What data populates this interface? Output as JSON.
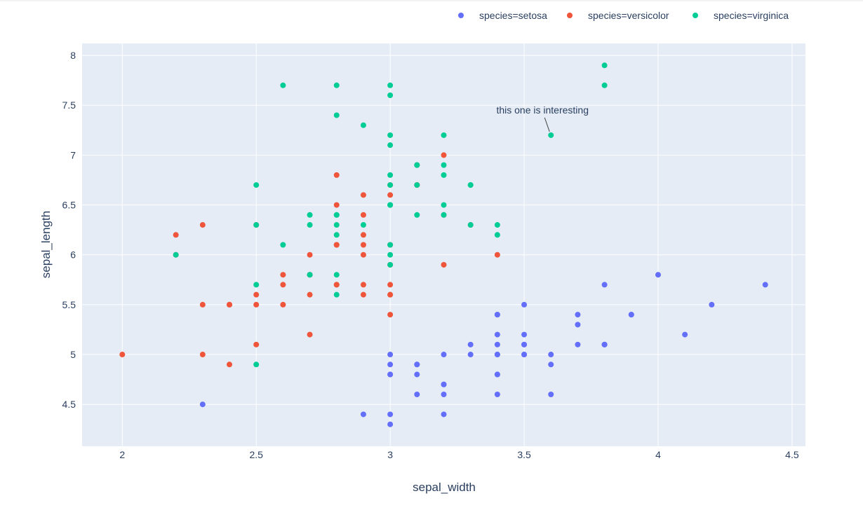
{
  "chart_data": {
    "type": "scatter",
    "xlabel": "sepal_width",
    "ylabel": "sepal_length",
    "xlim": [
      1.85,
      4.55
    ],
    "ylim": [
      4.08,
      8.12
    ],
    "xticks": [
      "2",
      "2.5",
      "3",
      "3.5",
      "4",
      "4.5"
    ],
    "yticks": [
      "4.5",
      "5",
      "5.5",
      "6",
      "6.5",
      "7",
      "7.5",
      "8"
    ],
    "grid": true,
    "legend_position": "top-right",
    "series": [
      {
        "name": "species=setosa",
        "color": "#636efa",
        "points": [
          [
            3.5,
            5.1
          ],
          [
            3.0,
            4.9
          ],
          [
            3.2,
            4.7
          ],
          [
            3.1,
            4.6
          ],
          [
            3.6,
            5.0
          ],
          [
            3.9,
            5.4
          ],
          [
            3.4,
            4.6
          ],
          [
            3.4,
            5.0
          ],
          [
            2.9,
            4.4
          ],
          [
            3.1,
            4.9
          ],
          [
            3.7,
            5.4
          ],
          [
            3.4,
            4.8
          ],
          [
            3.0,
            4.8
          ],
          [
            3.0,
            4.3
          ],
          [
            4.0,
            5.8
          ],
          [
            4.4,
            5.7
          ],
          [
            3.9,
            5.4
          ],
          [
            3.5,
            5.1
          ],
          [
            3.8,
            5.7
          ],
          [
            3.8,
            5.1
          ],
          [
            3.4,
            5.4
          ],
          [
            3.7,
            5.1
          ],
          [
            3.6,
            4.6
          ],
          [
            3.3,
            5.1
          ],
          [
            3.4,
            4.8
          ],
          [
            3.0,
            5.0
          ],
          [
            3.4,
            5.0
          ],
          [
            3.5,
            5.2
          ],
          [
            3.4,
            5.2
          ],
          [
            3.2,
            4.7
          ],
          [
            3.1,
            4.8
          ],
          [
            3.4,
            5.4
          ],
          [
            4.1,
            5.2
          ],
          [
            4.2,
            5.5
          ],
          [
            3.1,
            4.9
          ],
          [
            3.2,
            5.0
          ],
          [
            3.5,
            5.5
          ],
          [
            3.6,
            4.9
          ],
          [
            3.0,
            4.4
          ],
          [
            3.4,
            5.1
          ],
          [
            3.5,
            5.0
          ],
          [
            2.3,
            4.5
          ],
          [
            3.2,
            4.4
          ],
          [
            3.5,
            5.0
          ],
          [
            3.8,
            5.1
          ],
          [
            3.0,
            4.8
          ],
          [
            3.8,
            5.1
          ],
          [
            3.2,
            4.6
          ],
          [
            3.7,
            5.3
          ],
          [
            3.3,
            5.0
          ]
        ]
      },
      {
        "name": "species=versicolor",
        "color": "#EF553B",
        "points": [
          [
            3.2,
            7.0
          ],
          [
            3.2,
            6.4
          ],
          [
            3.1,
            6.9
          ],
          [
            2.3,
            5.5
          ],
          [
            2.8,
            6.5
          ],
          [
            2.8,
            5.7
          ],
          [
            3.3,
            6.3
          ],
          [
            2.4,
            4.9
          ],
          [
            2.9,
            6.6
          ],
          [
            2.7,
            5.2
          ],
          [
            2.0,
            5.0
          ],
          [
            3.0,
            5.9
          ],
          [
            2.2,
            6.0
          ],
          [
            2.9,
            6.1
          ],
          [
            2.9,
            5.6
          ],
          [
            3.1,
            6.7
          ],
          [
            3.0,
            5.6
          ],
          [
            2.7,
            5.8
          ],
          [
            2.2,
            6.2
          ],
          [
            2.5,
            5.6
          ],
          [
            3.2,
            5.9
          ],
          [
            2.8,
            6.1
          ],
          [
            2.5,
            6.3
          ],
          [
            2.8,
            6.1
          ],
          [
            2.9,
            6.4
          ],
          [
            3.0,
            6.6
          ],
          [
            2.8,
            6.8
          ],
          [
            3.0,
            6.7
          ],
          [
            2.9,
            6.0
          ],
          [
            2.6,
            5.7
          ],
          [
            2.4,
            5.5
          ],
          [
            2.4,
            5.5
          ],
          [
            2.7,
            5.8
          ],
          [
            2.7,
            6.0
          ],
          [
            3.0,
            5.4
          ],
          [
            3.4,
            6.0
          ],
          [
            3.1,
            6.7
          ],
          [
            2.3,
            6.3
          ],
          [
            3.0,
            5.6
          ],
          [
            2.5,
            5.5
          ],
          [
            2.6,
            5.5
          ],
          [
            3.0,
            6.1
          ],
          [
            2.6,
            5.8
          ],
          [
            2.3,
            5.0
          ],
          [
            2.7,
            5.6
          ],
          [
            3.0,
            5.7
          ],
          [
            2.9,
            5.7
          ],
          [
            2.9,
            6.2
          ],
          [
            2.5,
            5.1
          ],
          [
            2.8,
            5.7
          ]
        ]
      },
      {
        "name": "species=virginica",
        "color": "#00cc96",
        "points": [
          [
            3.3,
            6.3
          ],
          [
            2.7,
            5.8
          ],
          [
            3.0,
            7.1
          ],
          [
            2.9,
            6.3
          ],
          [
            3.0,
            6.5
          ],
          [
            3.0,
            7.6
          ],
          [
            2.5,
            4.9
          ],
          [
            2.9,
            7.3
          ],
          [
            2.5,
            6.7
          ],
          [
            3.6,
            7.2
          ],
          [
            3.2,
            6.5
          ],
          [
            2.7,
            6.4
          ],
          [
            3.0,
            6.8
          ],
          [
            2.5,
            5.7
          ],
          [
            2.8,
            5.8
          ],
          [
            3.2,
            6.4
          ],
          [
            3.0,
            6.5
          ],
          [
            3.8,
            7.7
          ],
          [
            2.6,
            7.7
          ],
          [
            2.2,
            6.0
          ],
          [
            3.2,
            6.9
          ],
          [
            2.8,
            5.6
          ],
          [
            2.8,
            7.7
          ],
          [
            2.7,
            6.3
          ],
          [
            3.3,
            6.7
          ],
          [
            3.2,
            7.2
          ],
          [
            2.8,
            6.2
          ],
          [
            3.0,
            6.1
          ],
          [
            2.8,
            6.4
          ],
          [
            3.0,
            7.2
          ],
          [
            2.8,
            7.4
          ],
          [
            3.8,
            7.9
          ],
          [
            2.8,
            6.4
          ],
          [
            2.8,
            6.3
          ],
          [
            2.6,
            6.1
          ],
          [
            3.0,
            7.7
          ],
          [
            3.4,
            6.3
          ],
          [
            3.1,
            6.4
          ],
          [
            3.0,
            6.0
          ],
          [
            3.1,
            6.9
          ],
          [
            3.1,
            6.7
          ],
          [
            3.1,
            6.9
          ],
          [
            2.7,
            5.8
          ],
          [
            3.2,
            6.8
          ],
          [
            3.3,
            6.7
          ],
          [
            3.0,
            6.7
          ],
          [
            2.5,
            6.3
          ],
          [
            3.0,
            6.5
          ],
          [
            3.4,
            6.2
          ],
          [
            3.0,
            5.9
          ]
        ]
      }
    ],
    "annotations": [
      {
        "text": "this one is interesting",
        "x": 3.6,
        "y": 7.2
      }
    ]
  }
}
